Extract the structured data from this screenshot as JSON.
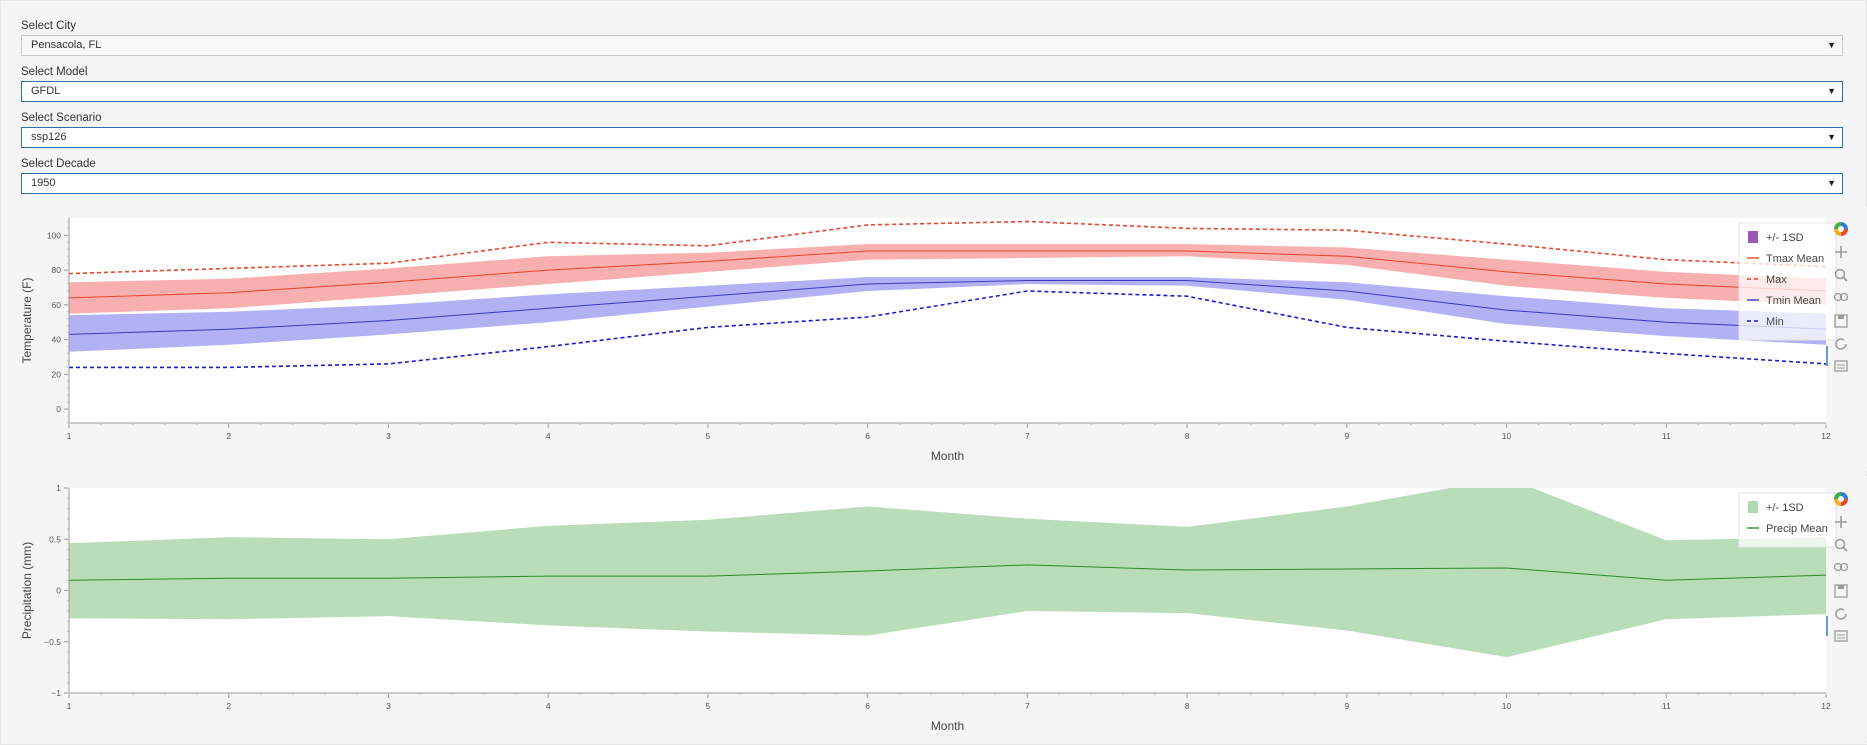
{
  "selectors": [
    {
      "label": "Select City",
      "value": "Pensacola, FL"
    },
    {
      "label": "Select Model",
      "value": "GFDL"
    },
    {
      "label": "Select Scenario",
      "value": "ssp126"
    },
    {
      "label": "Select Decade",
      "value": "1950"
    }
  ],
  "chart_data": [
    {
      "type": "area",
      "xlabel": "Month",
      "ylabel": "Temperature (F)",
      "xlim": [
        1,
        12
      ],
      "ylim": [
        -8,
        110
      ],
      "yticks": [
        0,
        20,
        40,
        60,
        80,
        100
      ],
      "xticks": [
        1,
        2,
        3,
        4,
        5,
        6,
        7,
        8,
        9,
        10,
        11,
        12
      ],
      "legend_position": "top-right",
      "x": [
        1,
        2,
        3,
        4,
        5,
        6,
        7,
        8,
        9,
        10,
        11,
        12
      ],
      "series": [
        {
          "name": "Max",
          "style": "dashed",
          "color": "#e8452c",
          "values": [
            78,
            81,
            84,
            96,
            94,
            106,
            108,
            104,
            103,
            95,
            86,
            82
          ]
        },
        {
          "name": "Tmax Mean",
          "style": "band",
          "color": "#e8452c",
          "band_color": "#f7a6a6",
          "values": [
            64,
            67,
            73,
            80,
            85,
            91,
            91,
            91,
            88,
            79,
            72,
            68
          ],
          "lower": [
            55,
            58,
            65,
            72,
            79,
            86,
            87,
            88,
            83,
            71,
            64,
            60
          ],
          "upper": [
            73,
            75,
            81,
            88,
            90,
            95,
            95,
            95,
            93,
            86,
            79,
            75
          ]
        },
        {
          "name": "Tmin Mean",
          "style": "band",
          "color": "#3b3bbf",
          "band_color": "#a8a8f2",
          "values": [
            43,
            46,
            51,
            58,
            65,
            72,
            74,
            74,
            68,
            57,
            50,
            46
          ],
          "lower": [
            33,
            37,
            43,
            50,
            59,
            68,
            72,
            71,
            63,
            49,
            42,
            37
          ],
          "upper": [
            54,
            56,
            60,
            66,
            71,
            76,
            76,
            76,
            73,
            65,
            58,
            55
          ]
        },
        {
          "name": "Min",
          "style": "dashed",
          "color": "#1a1acc",
          "values": [
            24,
            24,
            26,
            36,
            47,
            53,
            68,
            65,
            47,
            39,
            32,
            26
          ]
        }
      ],
      "legend": [
        "+/- 1SD",
        "Tmax Mean",
        "Max",
        "Tmin Mean",
        "Min"
      ],
      "legend_colors": [
        "#9b59b6",
        "#e8452c",
        "#e8452c",
        "#3b3bbf",
        "#1a1acc"
      ]
    },
    {
      "type": "area",
      "xlabel": "Month",
      "ylabel": "Precipitation (mm)",
      "xlim": [
        1,
        12
      ],
      "ylim": [
        -1,
        1
      ],
      "yticks": [
        -1,
        -0.5,
        0,
        0.5,
        1
      ],
      "yticklabels": [
        "−1",
        "−0.5",
        "0",
        "0.5",
        "1"
      ],
      "xticks": [
        1,
        2,
        3,
        4,
        5,
        6,
        7,
        8,
        9,
        10,
        11,
        12
      ],
      "legend_position": "top-right",
      "x": [
        1,
        2,
        3,
        4,
        5,
        6,
        7,
        8,
        9,
        10,
        11,
        12
      ],
      "series": [
        {
          "name": "Precip Mean",
          "style": "band",
          "color": "#2e8b2e",
          "band_color": "#b0d9b0",
          "values": [
            0.1,
            0.12,
            0.12,
            0.14,
            0.14,
            0.19,
            0.25,
            0.2,
            0.21,
            0.22,
            0.1,
            0.15
          ],
          "lower": [
            -0.27,
            -0.28,
            -0.25,
            -0.34,
            -0.4,
            -0.44,
            -0.2,
            -0.22,
            -0.39,
            -0.65,
            -0.28,
            -0.23
          ],
          "upper": [
            0.46,
            0.52,
            0.5,
            0.63,
            0.69,
            0.82,
            0.7,
            0.62,
            0.82,
            1.1,
            0.49,
            0.52
          ]
        }
      ],
      "legend": [
        "+/- 1SD",
        "Precip Mean"
      ],
      "legend_colors": [
        "#b0d9b0",
        "#2e8b2e"
      ]
    }
  ]
}
